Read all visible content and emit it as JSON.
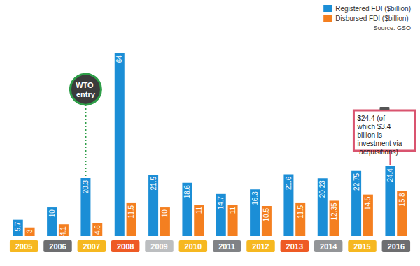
{
  "chart_data": {
    "type": "bar",
    "categories": [
      "2005",
      "2006",
      "2007",
      "2008",
      "2009",
      "2010",
      "2011",
      "2012",
      "2013",
      "2014",
      "2015",
      "2016"
    ],
    "series": [
      {
        "name": "Registered FDI ($billion)",
        "color": "#1b8ed6",
        "values": [
          5.7,
          10,
          20.3,
          64,
          21.5,
          18.6,
          14.7,
          16.3,
          21.6,
          20.23,
          22.75,
          24.4
        ]
      },
      {
        "name": "Disbursed FDI ($billion)",
        "color": "#f47f20",
        "values": [
          3,
          4.1,
          4.6,
          11.5,
          10,
          11,
          11,
          10.5,
          11.5,
          12.35,
          14.5,
          15.8
        ]
      }
    ],
    "source": "Source: GSO",
    "annotations": [
      {
        "text": "WTO entry",
        "category": "2007",
        "series": "Registered FDI ($billion)"
      },
      {
        "text": "$24.4 (of which $3.4 billion is investment via acquisitions)",
        "category": "2016",
        "series": "Registered FDI ($billion)"
      }
    ],
    "ylim": [
      0,
      64
    ],
    "yticks": [
      0,
      64
    ],
    "grid": false,
    "legend": "top-right",
    "data_labels": true,
    "tick_labels": "x"
  }
}
